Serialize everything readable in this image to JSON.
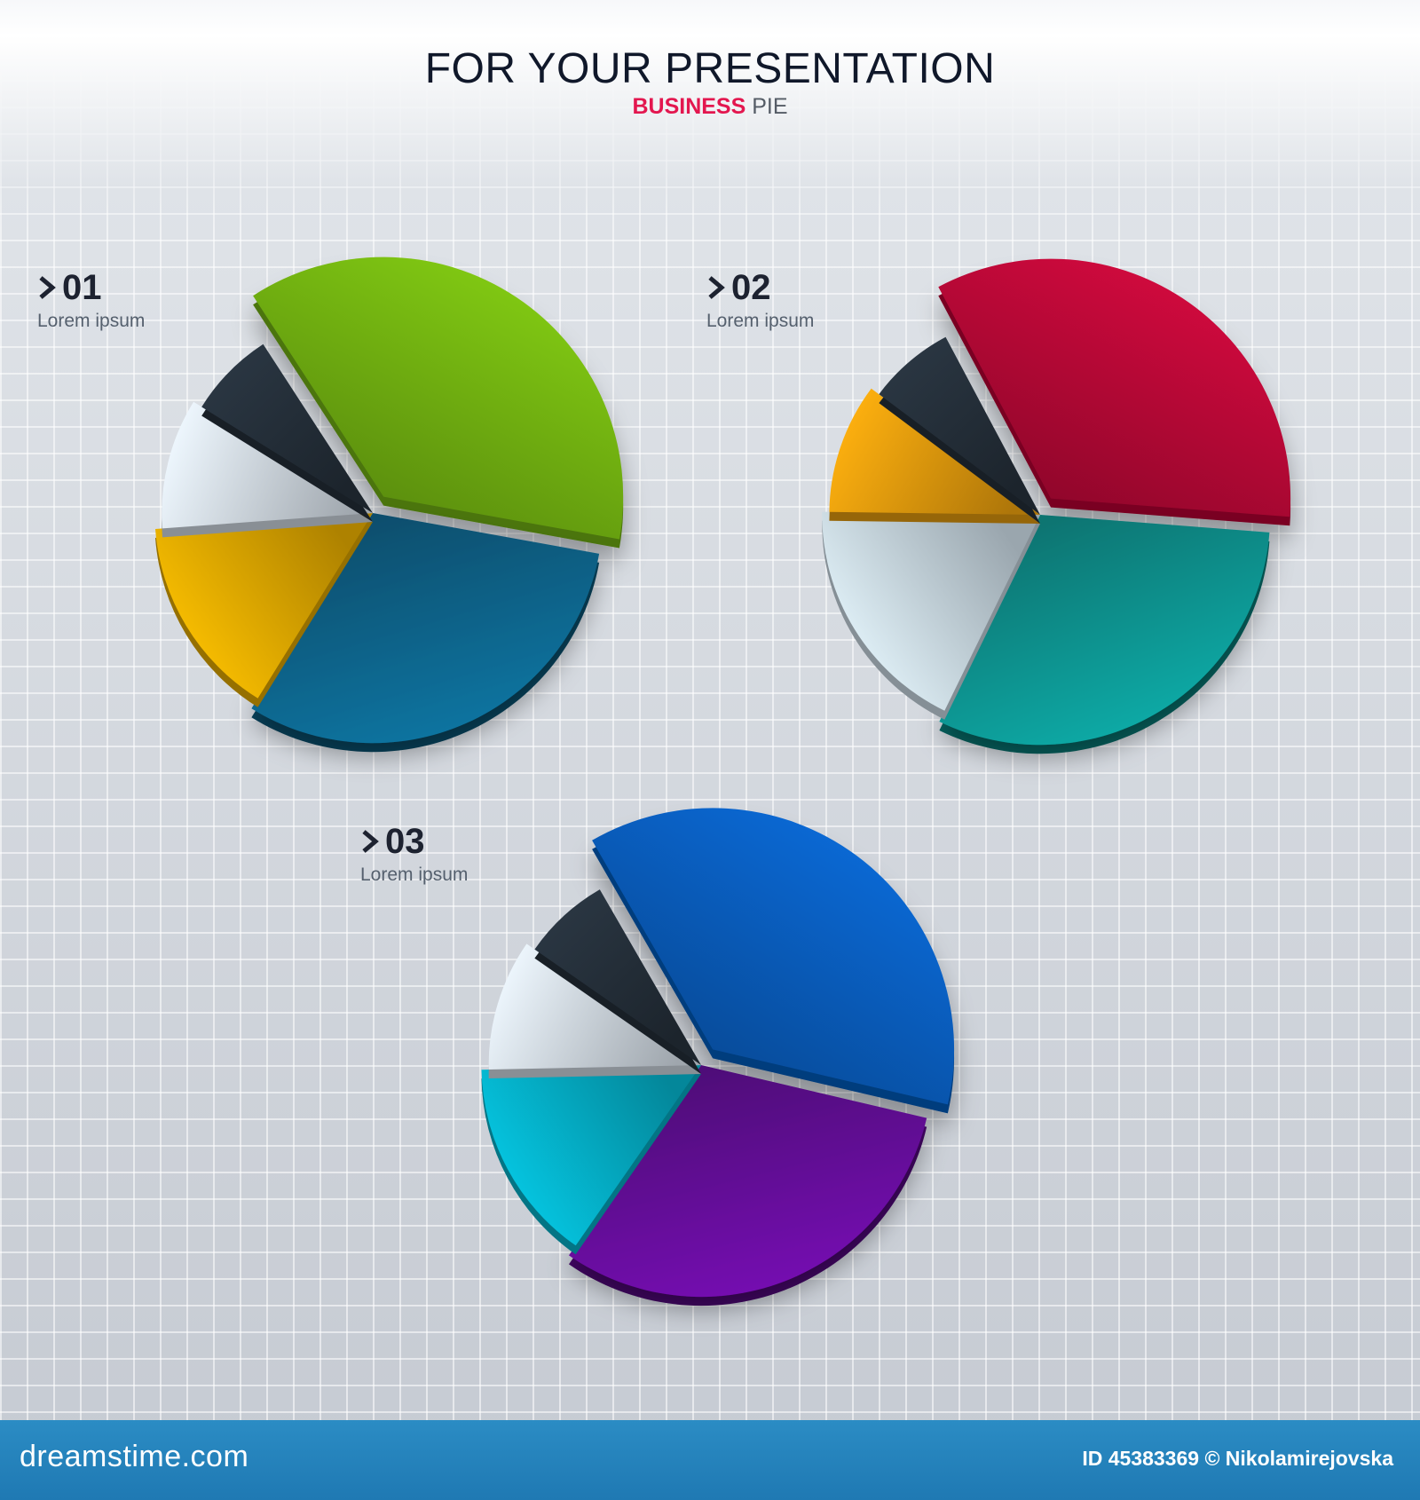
{
  "header": {
    "title": "FOR YOUR PRESENTATION",
    "subtitle_accent": "BUSINESS",
    "subtitle_rest": "PIE"
  },
  "chart_data": [
    {
      "type": "pie",
      "label": "01",
      "description": "Lorem ipsum",
      "slices": [
        {
          "value": 37,
          "color": "#79bd12",
          "exploded": true
        },
        {
          "value": 31,
          "color": "#0d6d97"
        },
        {
          "value": 15,
          "color": "#f2b500"
        },
        {
          "value": 10,
          "color": "#dde6f0"
        },
        {
          "value": 7,
          "color": "#27323d"
        }
      ]
    },
    {
      "type": "pie",
      "label": "02",
      "description": "Lorem ipsum",
      "slices": [
        {
          "value": 34,
          "color": "#c5093a",
          "exploded": true
        },
        {
          "value": 31,
          "color": "#0aa19d"
        },
        {
          "value": 18,
          "color": "#d6e6f2"
        },
        {
          "value": 10,
          "color": "#f2a40e"
        },
        {
          "value": 7,
          "color": "#27323d"
        }
      ]
    },
    {
      "type": "pie",
      "label": "03",
      "description": "Lorem ipsum",
      "slices": [
        {
          "value": 37,
          "color": "#0a63c9",
          "exploded": true
        },
        {
          "value": 31,
          "color": "#6d0aa6"
        },
        {
          "value": 15,
          "color": "#05bcd6"
        },
        {
          "value": 10,
          "color": "#dde6f0"
        },
        {
          "value": 7,
          "color": "#27323d"
        }
      ]
    }
  ],
  "watermark": "dreamstime",
  "footer": {
    "brand": "dreamstime.com",
    "credit": "ID 45383369 © Nikolamirejovska"
  }
}
